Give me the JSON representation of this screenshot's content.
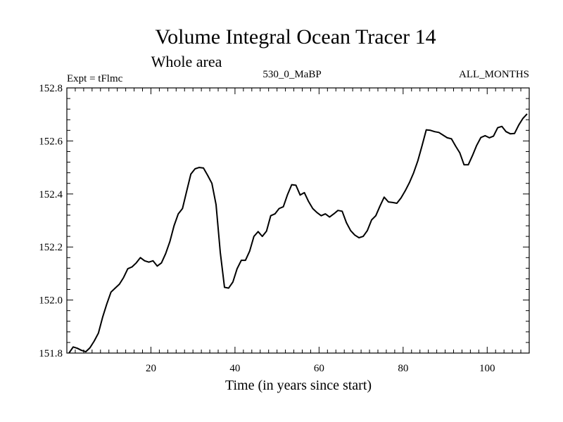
{
  "chart_data": {
    "type": "line",
    "title": "Volume Integral Ocean Tracer 14",
    "subtitle": "Whole area",
    "left_label": "Expt = tFlmc",
    "center_label": "530_0_MaBP",
    "right_label": "ALL_MONTHS",
    "xlabel": "Time (in years since start)",
    "ylabel": "",
    "xlim": [
      0,
      110
    ],
    "ylim": [
      151.8,
      152.8
    ],
    "x_ticks": [
      20,
      40,
      60,
      80,
      100
    ],
    "y_ticks": [
      151.8,
      152.0,
      152.2,
      152.4,
      152.6,
      152.8
    ],
    "y_tick_labels": [
      "151.8",
      "152.0",
      "152.2",
      "152.4",
      "152.6",
      "152.8"
    ],
    "grid": false,
    "series": [
      {
        "name": "Volume Integral Ocean Tracer 14",
        "x": [
          0.5,
          1.5,
          2.5,
          3.5,
          4.5,
          5.5,
          6.5,
          7.5,
          8.5,
          9.5,
          10.5,
          11.5,
          12.5,
          13.5,
          14.5,
          15.5,
          16.5,
          17.5,
          18.5,
          19.5,
          20.5,
          21.5,
          22.5,
          23.5,
          24.5,
          25.5,
          26.5,
          27.5,
          28.5,
          29.5,
          30.5,
          31.5,
          32.5,
          33.5,
          34.5,
          35.5,
          36.5,
          37.5,
          38.5,
          39.5,
          40.5,
          41.5,
          42.5,
          43.5,
          44.5,
          45.5,
          46.5,
          47.5,
          48.5,
          49.5,
          50.5,
          51.5,
          52.5,
          53.5,
          54.5,
          55.5,
          56.5,
          57.5,
          58.5,
          59.5,
          60.5,
          61.5,
          62.5,
          63.5,
          64.5,
          65.5,
          66.5,
          67.5,
          68.5,
          69.5,
          70.5,
          71.5,
          72.5,
          73.5,
          74.5,
          75.5,
          76.5,
          77.5,
          78.5,
          79.5,
          80.5,
          81.5,
          82.5,
          83.5,
          84.5,
          85.5,
          86.5,
          87.5,
          88.5,
          89.5,
          90.5,
          91.5,
          92.5,
          93.5,
          94.5,
          95.5,
          96.5,
          97.5,
          98.5,
          99.5,
          100.5,
          101.5,
          102.5,
          103.5,
          104.5,
          105.5,
          106.5,
          107.5,
          108.5,
          109.5
        ],
        "values": [
          151.8,
          151.823,
          151.818,
          151.81,
          151.805,
          151.82,
          151.845,
          151.875,
          151.935,
          151.985,
          152.03,
          152.045,
          152.06,
          152.085,
          152.118,
          152.125,
          152.14,
          152.16,
          152.148,
          152.143,
          152.148,
          152.128,
          152.14,
          152.175,
          152.22,
          152.28,
          152.325,
          152.345,
          152.41,
          152.475,
          152.495,
          152.5,
          152.498,
          152.47,
          152.44,
          152.36,
          152.18,
          152.048,
          152.045,
          152.068,
          152.118,
          152.15,
          152.15,
          152.185,
          152.24,
          152.258,
          152.24,
          152.26,
          152.318,
          152.325,
          152.345,
          152.352,
          152.398,
          152.435,
          152.433,
          152.396,
          152.405,
          152.372,
          152.345,
          152.33,
          152.318,
          152.325,
          152.313,
          152.325,
          152.338,
          152.335,
          152.292,
          152.262,
          152.245,
          152.235,
          152.24,
          152.262,
          152.302,
          152.318,
          152.355,
          152.388,
          152.37,
          152.368,
          152.365,
          152.385,
          152.412,
          152.443,
          152.48,
          152.525,
          152.582,
          152.642,
          152.64,
          152.635,
          152.632,
          152.622,
          152.612,
          152.608,
          152.58,
          152.555,
          152.51,
          152.51,
          152.545,
          152.583,
          152.613,
          152.62,
          152.612,
          152.618,
          152.65,
          152.655,
          152.635,
          152.627,
          152.628,
          152.66,
          152.685,
          152.702
        ]
      }
    ]
  }
}
